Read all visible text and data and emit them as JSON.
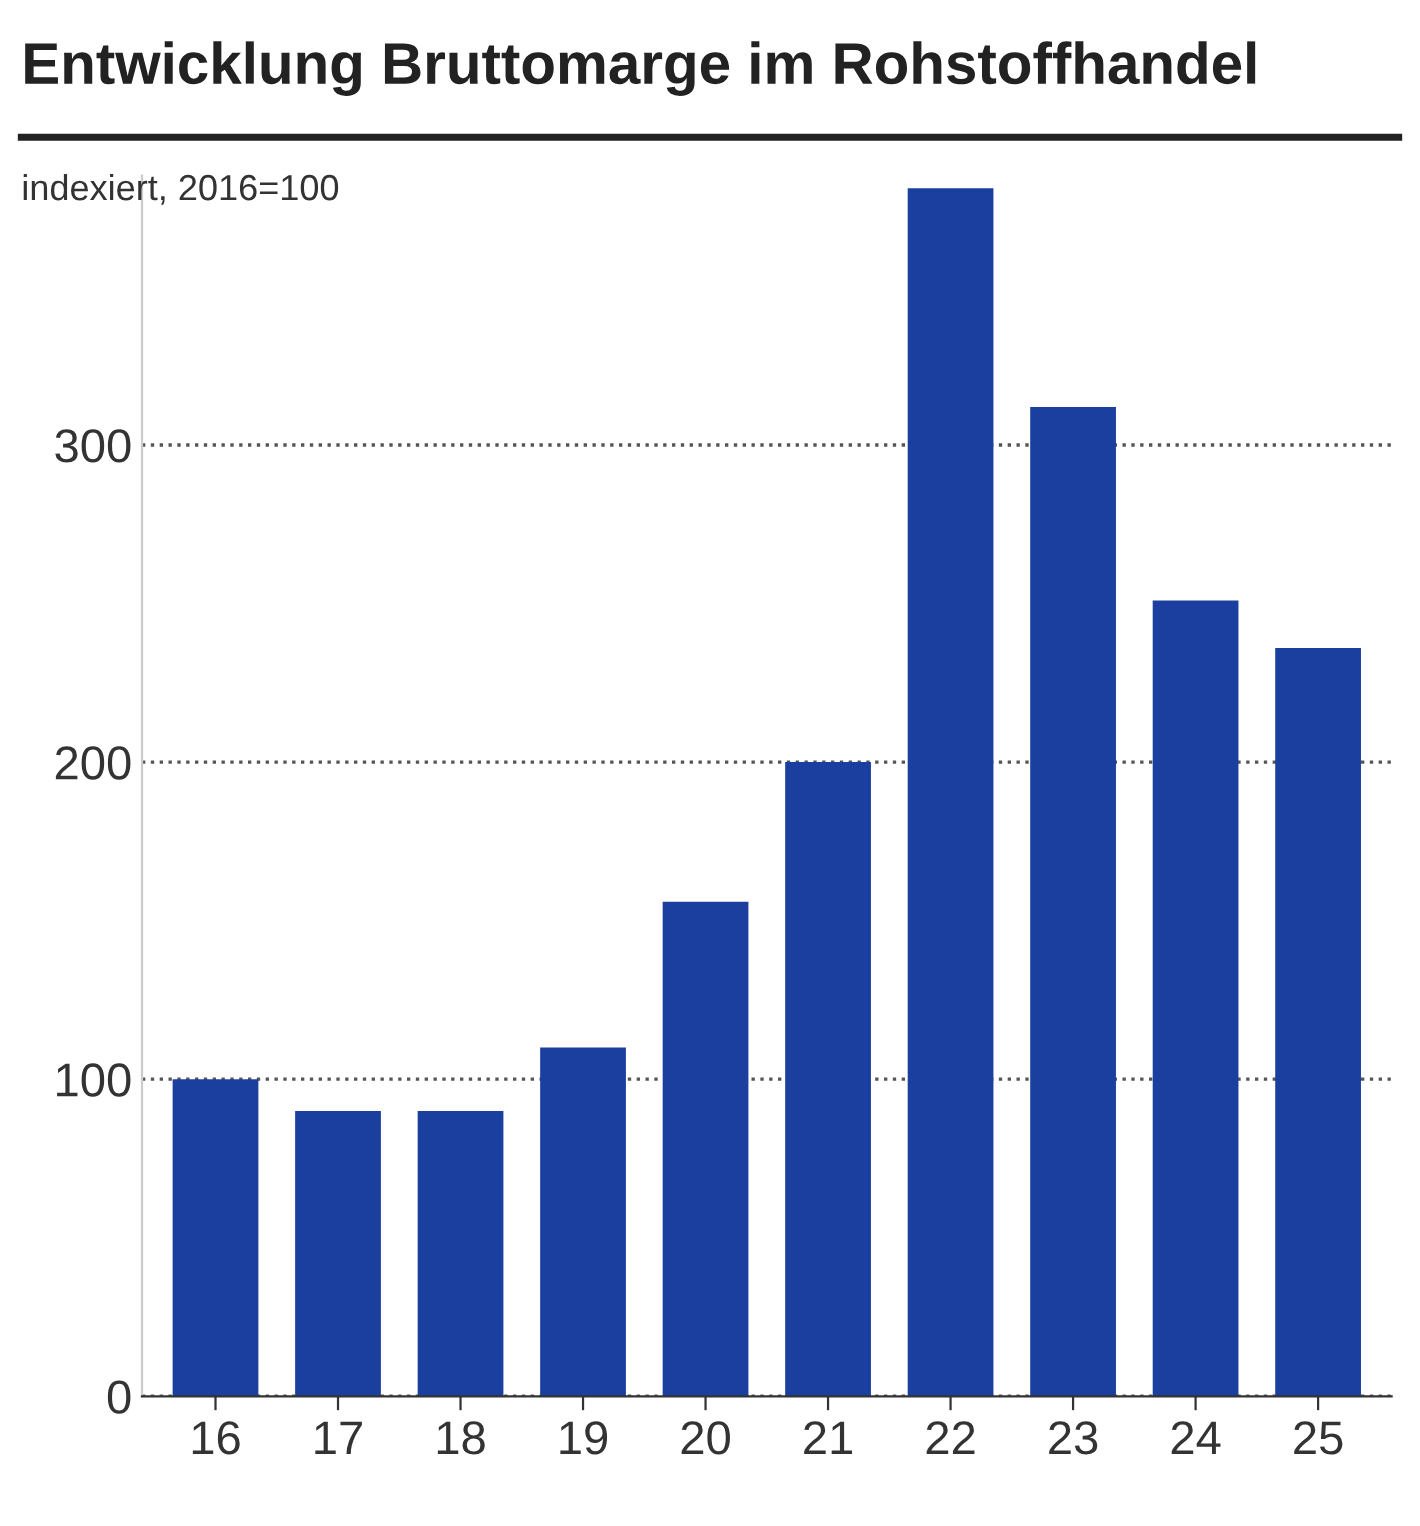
{
  "chart_data": {
    "type": "bar",
    "title": "Entwicklung Bruttomarge im Rohstoffhandel",
    "subtitle": "indexiert, 2016=100",
    "categories": [
      "16",
      "17",
      "18",
      "19",
      "20",
      "21",
      "22",
      "23",
      "24",
      "25"
    ],
    "values": [
      100,
      90,
      90,
      110,
      156,
      200,
      381,
      312,
      251,
      236
    ],
    "color": "#1b3f9f",
    "ylim": [
      0,
      385
    ],
    "yticks": [
      0,
      100,
      200,
      300
    ],
    "grid": "y",
    "line_style": "dotted"
  }
}
